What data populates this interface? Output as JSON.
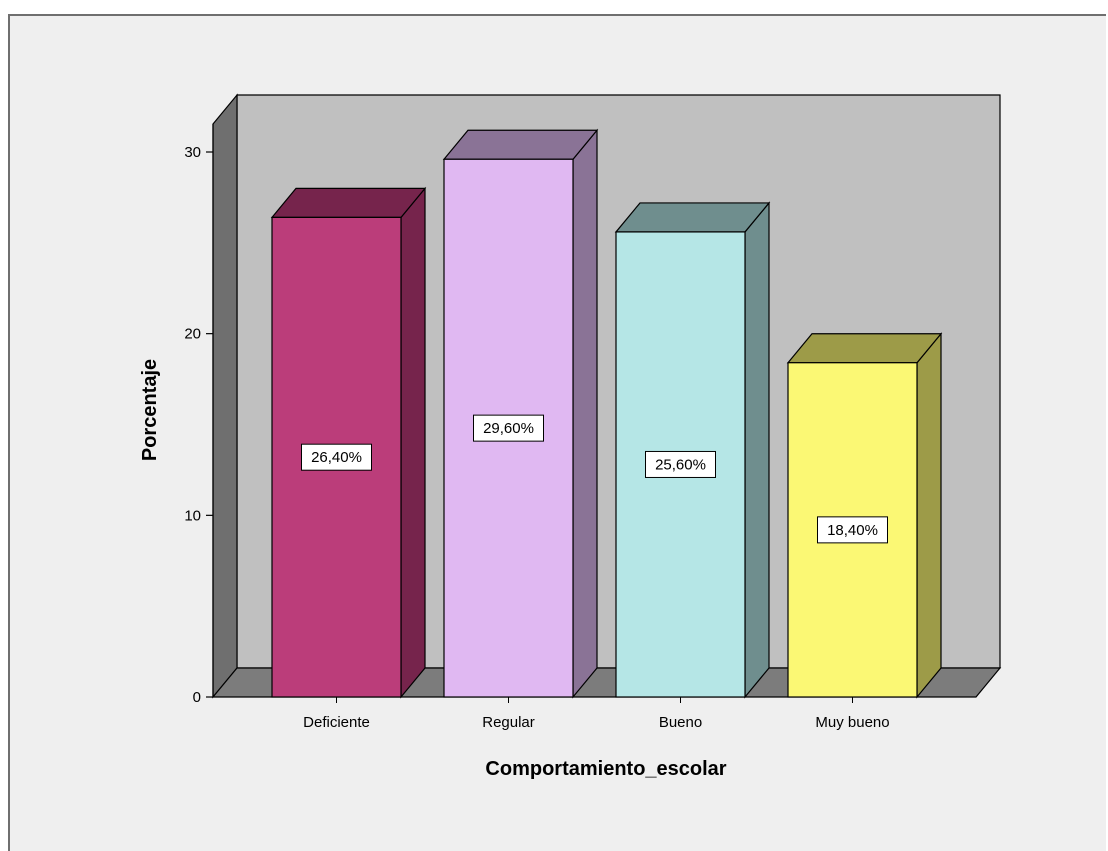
{
  "chart_data": {
    "type": "bar",
    "style": "3d",
    "categories": [
      "Deficiente",
      "Regular",
      "Bueno",
      "Muy bueno"
    ],
    "values": [
      26.4,
      29.6,
      25.6,
      18.4
    ],
    "data_labels": [
      "26,40%",
      "29,60%",
      "25,60%",
      "18,40%"
    ],
    "xlabel": "Comportamiento_escolar",
    "ylabel": "Porcentaje",
    "ylim": [
      0,
      30
    ],
    "yticks": [
      "0",
      "10",
      "20",
      "30"
    ],
    "grid": false,
    "colors": {
      "background": "#efefef",
      "plot_back_wall": "#c0c0c0",
      "wall_side": "#6f6f6f",
      "floor": "#7c7c7c",
      "bars_front": [
        "#bb3d7a",
        "#e0b8f2",
        "#b5e6e6",
        "#fbf874"
      ],
      "bars_top": [
        "#76244c",
        "#8a7396",
        "#6f8e8e",
        "#9d9b48"
      ],
      "bars_side": [
        "#76244c",
        "#8a7396",
        "#6f8e8e",
        "#9d9b48"
      ]
    }
  }
}
